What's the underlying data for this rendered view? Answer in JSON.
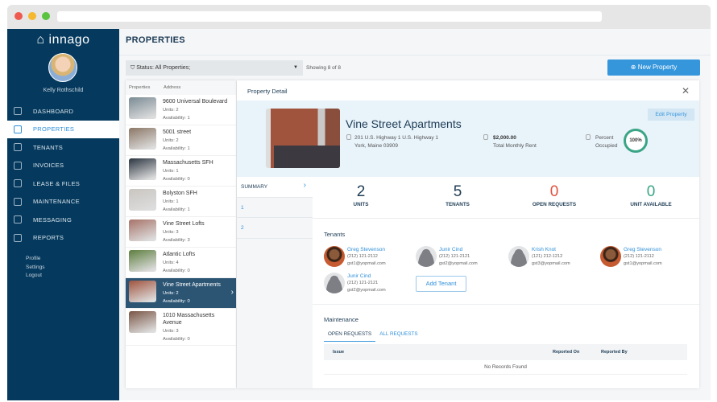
{
  "app": {
    "logo": "innago",
    "user_name": "Kelly Rothschild"
  },
  "nav": [
    {
      "label": "DASHBOARD",
      "icon": "dashboard-icon"
    },
    {
      "label": "PROPERTIES",
      "icon": "home-icon",
      "active": true
    },
    {
      "label": "TENANTS",
      "icon": "users-icon"
    },
    {
      "label": "INVOICES",
      "icon": "invoice-icon"
    },
    {
      "label": "LEASE & FILES",
      "icon": "file-icon"
    },
    {
      "label": "MAINTENANCE",
      "icon": "wrench-icon"
    },
    {
      "label": "MESSAGING",
      "icon": "mail-icon"
    },
    {
      "label": "REPORTS",
      "icon": "report-icon"
    }
  ],
  "sub_links": [
    "Profile",
    "Settings",
    "Logout"
  ],
  "header": {
    "title": "PROPERTIES",
    "filter": "Status: All Properties;",
    "showing": "Showing 8 of 8",
    "new_button": "New Property"
  },
  "property_list": {
    "columns": [
      "Properties",
      "Address"
    ],
    "items": [
      {
        "name": "9600 Universal Boulevard",
        "units": "Units: 2",
        "availability": "Availability: 1",
        "color": "#7a8b94"
      },
      {
        "name": "5001 street",
        "units": "Units: 2",
        "availability": "Availability: 1",
        "color": "#8b7766"
      },
      {
        "name": "Massachusetts SFH",
        "units": "Units: 1",
        "availability": "Availability: 0",
        "color": "#2b3440"
      },
      {
        "name": "Bolyston SFH",
        "units": "Units: 1",
        "availability": "Availability: 1",
        "color": "#c9c5c0"
      },
      {
        "name": "Vine Street Lofts",
        "units": "Units: 3",
        "availability": "Availability: 3",
        "color": "#a77368"
      },
      {
        "name": "Atlantic Lofts",
        "units": "Units: 4",
        "availability": "Availability: 0",
        "color": "#5d7e3e"
      },
      {
        "name": "Vine Street Apartments",
        "units": "Units: 2",
        "availability": "Availability: 0",
        "color": "#a0543e",
        "selected": true
      },
      {
        "name": "1010 Massachusetts Avenue",
        "units": "Units: 3",
        "availability": "Availability: 0",
        "color": "#7a5545"
      }
    ]
  },
  "detail": {
    "title": "Property Detail",
    "name": "Vine Street Apartments",
    "address1": "201 U.S. Highway 1 U.S. Highway 1",
    "address2": "York, Maine 03909",
    "rent": "$2,000.00",
    "rent_label": "Total Monthly Rent",
    "occ_label1": "Percent",
    "occ_label2": "Occupied",
    "occupancy": "100%",
    "edit_button": "Edit Property",
    "tabs": [
      "SUMMARY",
      "1",
      "2"
    ],
    "stats": [
      {
        "value": "2",
        "label": "UNITS",
        "color": "#1e3c55"
      },
      {
        "value": "5",
        "label": "TENANTS",
        "color": "#1e3c55"
      },
      {
        "value": "0",
        "label": "OPEN REQUESTS",
        "color": "#e0533e"
      },
      {
        "value": "0",
        "label": "UNIT AVAILABLE",
        "color": "#3aa585"
      }
    ],
    "tenants_title": "Tenants",
    "tenants": [
      {
        "name": "Greg Stevenson",
        "phone": "(212) 121-2112",
        "email": "gst1@yopmail.com",
        "photo": true
      },
      {
        "name": "Junir Cind",
        "phone": "(212) 121-2121",
        "email": "gst2@yopmail.com"
      },
      {
        "name": "Krish Knot",
        "phone": "(121) 212-1212",
        "email": "gst3@yopmail.com"
      },
      {
        "name": "Greg Stevenson",
        "phone": "(212) 121-2112",
        "email": "gst1@yopmail.com",
        "photo": true
      },
      {
        "name": "Junir Cind",
        "phone": "(212) 121-2121",
        "email": "gst2@yopmail.com"
      }
    ],
    "add_tenant": "Add Tenant",
    "maintenance_title": "Maintenance",
    "maint_tabs": [
      "OPEN REQUESTS",
      "ALL REQUESTS"
    ],
    "table_columns": [
      "Issue",
      "Reported On",
      "Reported By"
    ],
    "empty": "No Records Found"
  }
}
